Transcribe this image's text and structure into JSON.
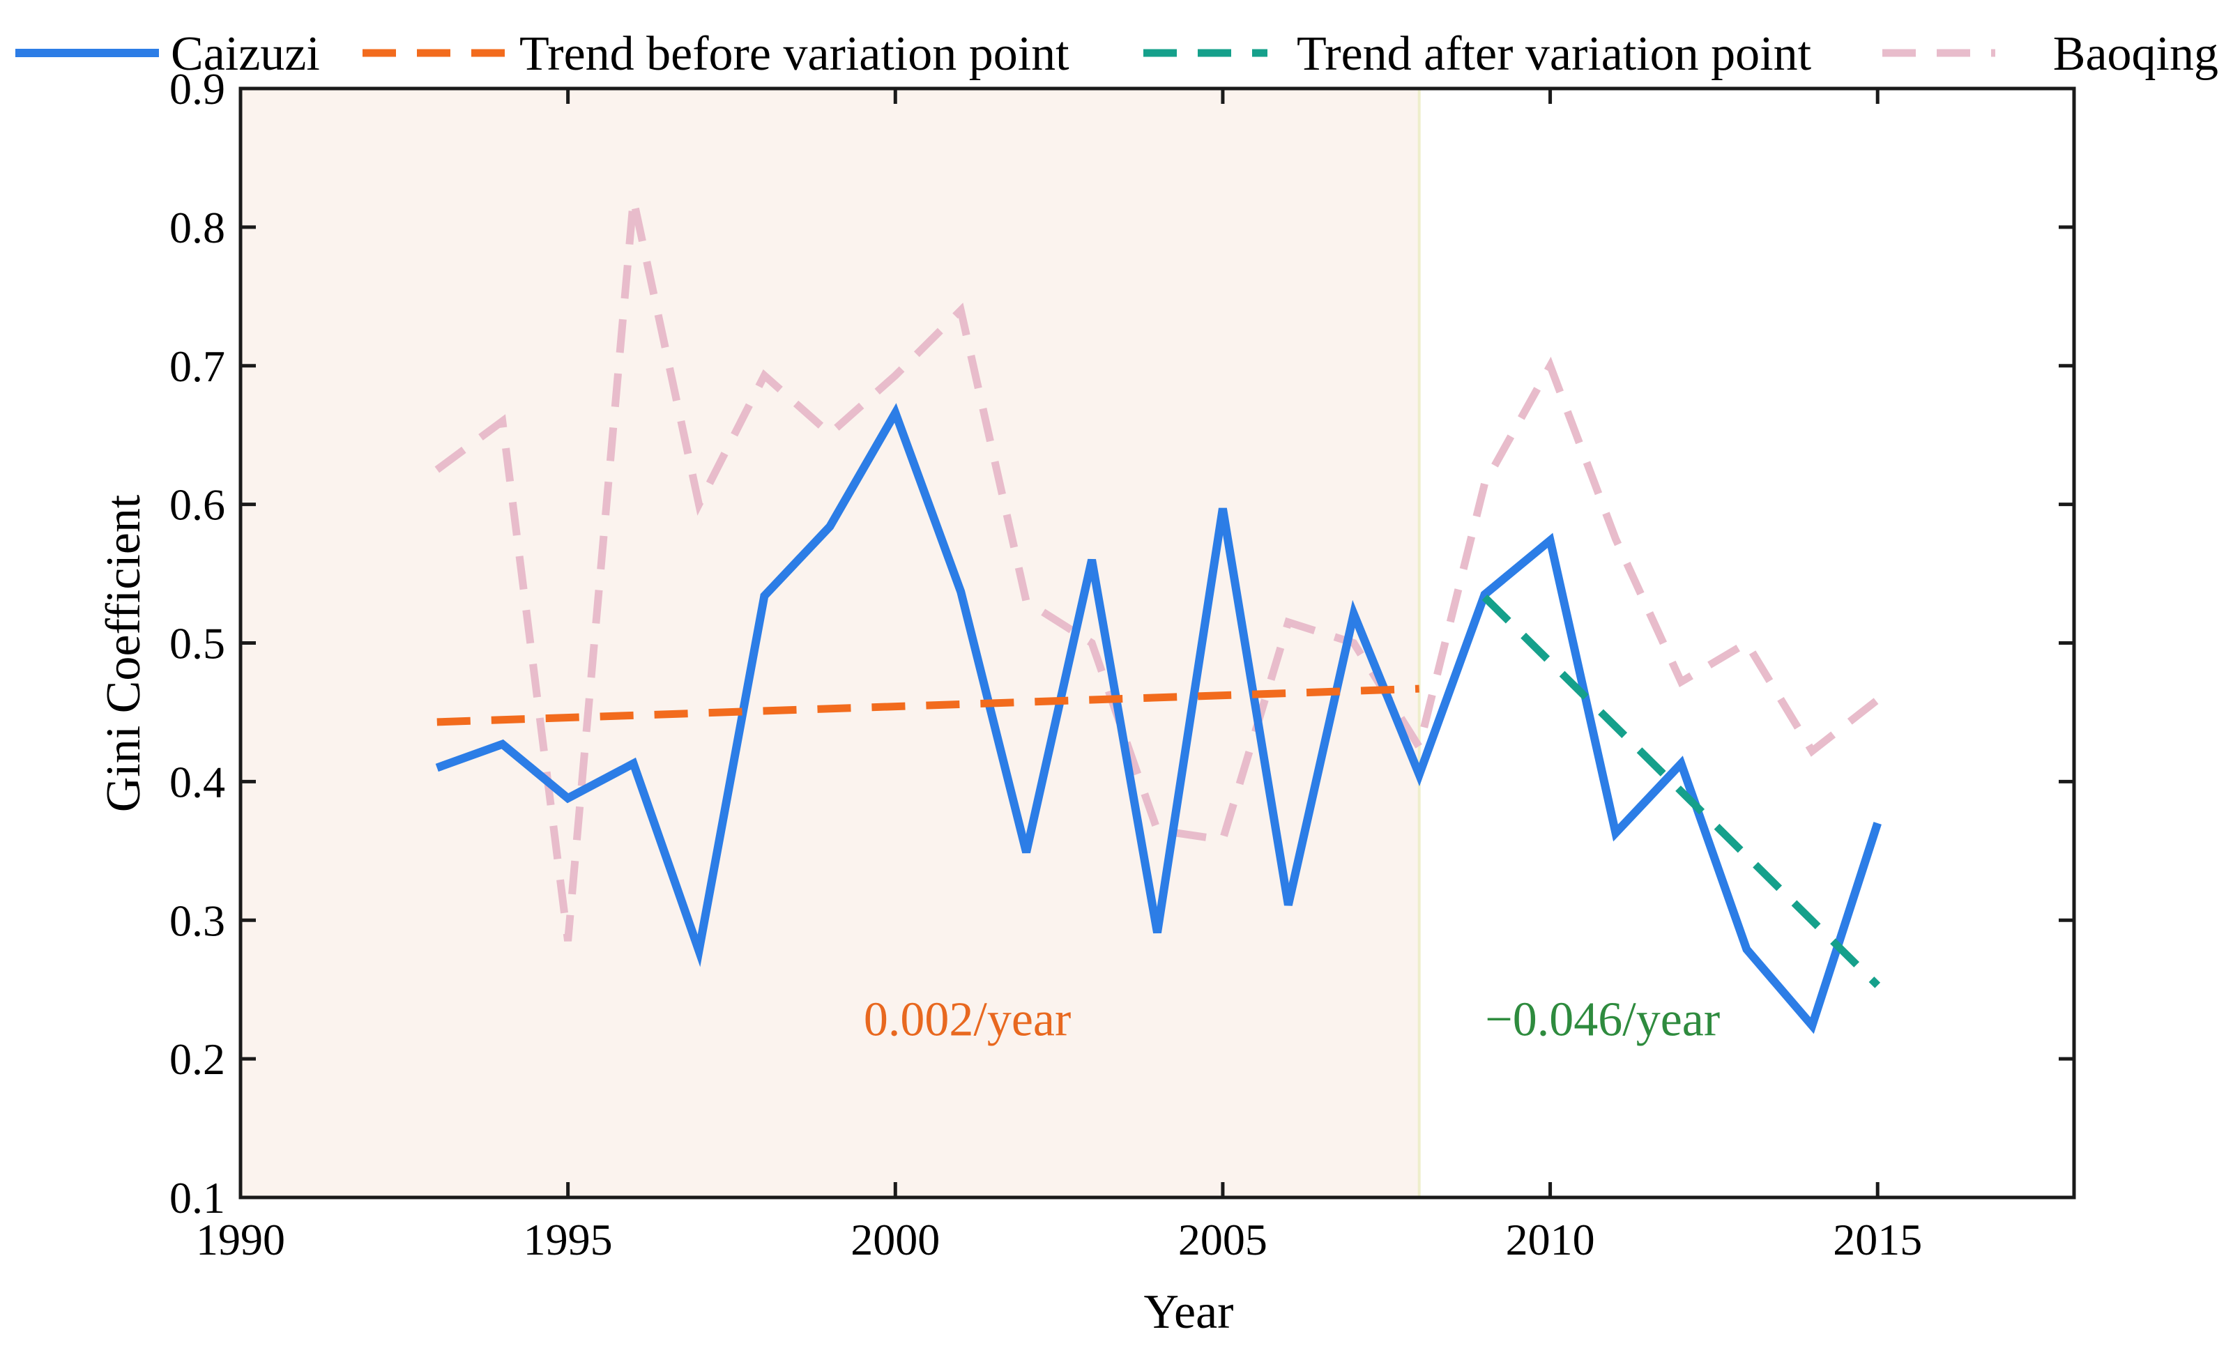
{
  "chart_data": {
    "type": "line",
    "xlabel": "Year",
    "ylabel": "Gini Coefficient",
    "xlim": [
      1990,
      2018
    ],
    "ylim": [
      0.1,
      0.9
    ],
    "grid": false,
    "legend_position": "top",
    "x_ticks": [
      1990,
      1995,
      2000,
      2005,
      2010,
      2015
    ],
    "x_tick_labels": [
      "1990",
      "1995",
      "2000",
      "2005",
      "2010",
      "2015"
    ],
    "y_ticks": [
      0.1,
      0.2,
      0.3,
      0.4,
      0.5,
      0.6,
      0.7,
      0.8,
      0.9
    ],
    "y_tick_labels": [
      "0.1",
      "0.2",
      "0.3",
      "0.4",
      "0.5",
      "0.6",
      "0.7",
      "0.8",
      "0.9"
    ],
    "shaded_region": {
      "x_start": 1990,
      "x_end": 2008,
      "color": "#fbf3ee",
      "border_color": "#eeeecb"
    },
    "series": [
      {
        "name": "Caizuzi",
        "style": "solid",
        "color": "#2c7de6",
        "x": [
          1993,
          1994,
          1995,
          1996,
          1997,
          1998,
          1999,
          2000,
          2001,
          2002,
          2003,
          2004,
          2005,
          2006,
          2007,
          2008,
          2009,
          2010,
          2011,
          2012,
          2013,
          2014,
          2015
        ],
        "y": [
          0.41,
          0.427,
          0.388,
          0.413,
          0.278,
          0.534,
          0.584,
          0.666,
          0.537,
          0.349,
          0.56,
          0.291,
          0.597,
          0.311,
          0.521,
          0.405,
          0.535,
          0.574,
          0.363,
          0.413,
          0.279,
          0.224,
          0.37
        ]
      },
      {
        "name": "Trend before variation point",
        "style": "dashed",
        "color": "#f26b1d",
        "x": [
          1993,
          2008
        ],
        "y": [
          0.443,
          0.467
        ]
      },
      {
        "name": "Trend after variation point",
        "style": "dashed",
        "color": "#15a08b",
        "x": [
          2009,
          2015
        ],
        "y": [
          0.533,
          0.253
        ]
      },
      {
        "name": "Baoqing",
        "style": "dashed",
        "color": "#e8bccb",
        "x": [
          1993,
          1994,
          1995,
          1996,
          1997,
          1998,
          1999,
          2000,
          2001,
          2002,
          2003,
          2004,
          2005,
          2006,
          2007,
          2008,
          2009,
          2010,
          2011,
          2012,
          2013,
          2014,
          2015
        ],
        "y": [
          0.625,
          0.66,
          0.285,
          0.82,
          0.6,
          0.693,
          0.651,
          0.693,
          0.74,
          0.53,
          0.5,
          0.365,
          0.358,
          0.515,
          0.5,
          0.425,
          0.615,
          0.7,
          0.575,
          0.472,
          0.5,
          0.422,
          0.459
        ]
      }
    ],
    "annotations": [
      {
        "text": "0.002/year",
        "x": 2001.1,
        "y": 0.228,
        "color": "#e8681f"
      },
      {
        "text": "−0.046/year",
        "x": 2010.8,
        "y": 0.228,
        "color": "#2e8b3e"
      }
    ]
  }
}
